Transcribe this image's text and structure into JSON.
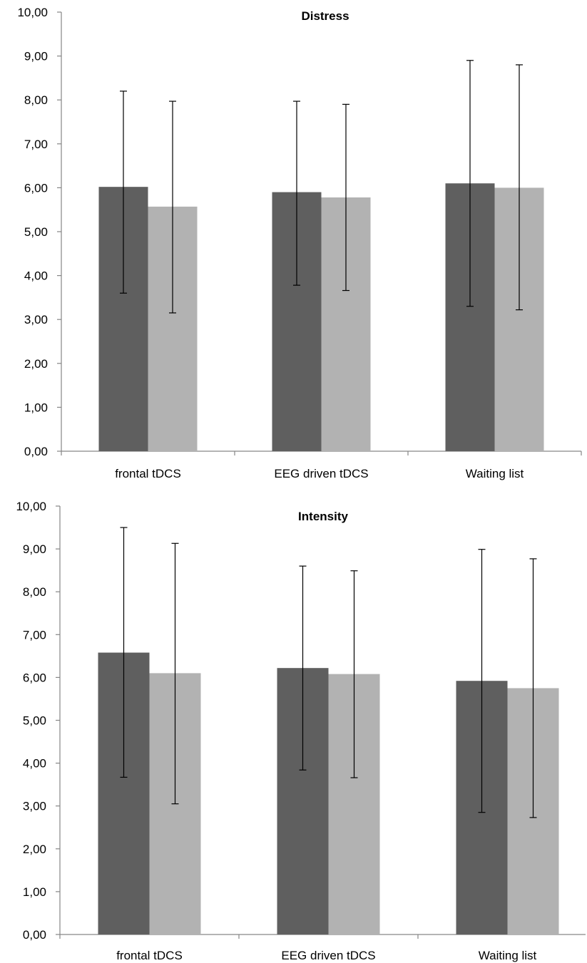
{
  "chart_data": [
    {
      "type": "bar",
      "title": "Distress",
      "categories": [
        "frontal tDCS",
        "EEG driven tDCS",
        "Waiting list"
      ],
      "ylim": [
        0,
        10
      ],
      "yticks": [
        "0,00",
        "1,00",
        "2,00",
        "3,00",
        "4,00",
        "5,00",
        "6,00",
        "7,00",
        "8,00",
        "9,00",
        "10,00"
      ],
      "grid": false,
      "series": [
        {
          "color": "#5f5f5f",
          "values": [
            6.02,
            5.9,
            6.1
          ],
          "error_low": [
            3.6,
            3.78,
            3.3
          ],
          "error_high": [
            8.2,
            7.97,
            8.9
          ]
        },
        {
          "color": "#b2b2b2",
          "values": [
            5.57,
            5.78,
            6.0
          ],
          "error_low": [
            3.15,
            3.66,
            3.22
          ],
          "error_high": [
            7.97,
            7.9,
            8.8
          ]
        }
      ]
    },
    {
      "type": "bar",
      "title": "Intensity",
      "categories": [
        "frontal tDCS",
        "EEG driven tDCS",
        "Waiting list"
      ],
      "ylim": [
        0,
        10
      ],
      "yticks": [
        "0,00",
        "1,00",
        "2,00",
        "3,00",
        "4,00",
        "5,00",
        "6,00",
        "7,00",
        "8,00",
        "9,00",
        "10,00"
      ],
      "grid": false,
      "series": [
        {
          "color": "#5f5f5f",
          "values": [
            6.58,
            6.22,
            5.92
          ],
          "error_low": [
            3.67,
            3.84,
            2.85
          ],
          "error_high": [
            9.5,
            8.6,
            8.99
          ]
        },
        {
          "color": "#b2b2b2",
          "values": [
            6.1,
            6.08,
            5.75
          ],
          "error_low": [
            3.05,
            3.66,
            2.73
          ],
          "error_high": [
            9.13,
            8.49,
            8.77
          ]
        }
      ]
    }
  ]
}
